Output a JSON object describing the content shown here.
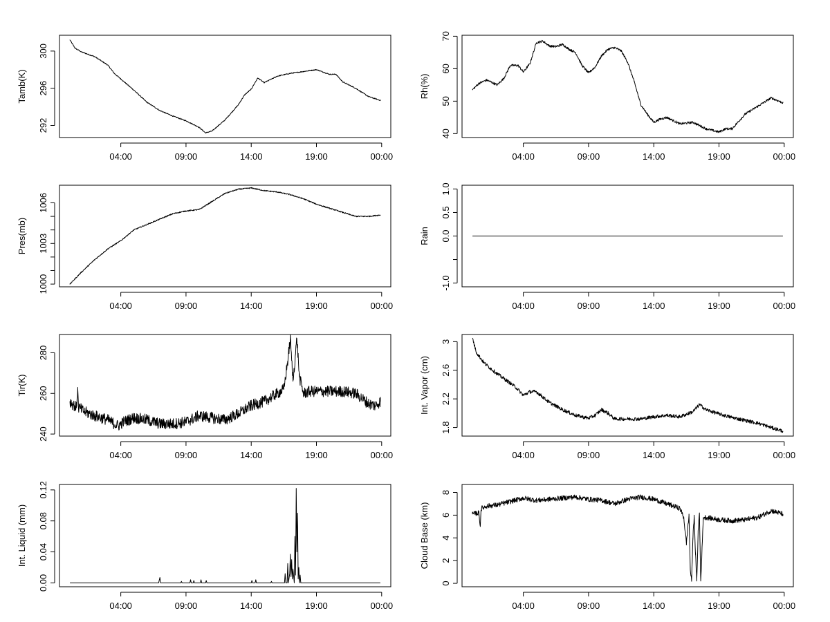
{
  "chart_data": [
    {
      "type": "line",
      "ylabel": "Tamb(K)",
      "xlabel": "",
      "x_ticks": [
        "04:00",
        "09:00",
        "14:00",
        "19:00",
        "00:00"
      ],
      "y_ticks": [
        292,
        296,
        300
      ],
      "ylim": [
        290.7,
        301.7
      ],
      "xlim_hours": [
        -0.7,
        24.7
      ],
      "noise": 0.05,
      "series": [
        {
          "x": [
            0.1,
            0.5,
            1,
            2,
            3,
            3.5,
            4,
            5,
            6,
            7,
            8,
            9,
            10,
            10.5,
            11,
            12,
            13,
            13.5,
            14,
            14.5,
            15,
            16,
            17,
            18,
            19,
            20,
            20.5,
            21,
            22,
            23,
            23.9
          ],
          "y": [
            301.2,
            300.3,
            299.9,
            299.4,
            298.5,
            297.6,
            297.0,
            295.8,
            294.5,
            293.6,
            293.0,
            292.5,
            291.8,
            291.2,
            291.4,
            292.6,
            294.2,
            295.3,
            295.9,
            297.1,
            296.6,
            297.3,
            297.6,
            297.8,
            298.0,
            297.5,
            297.5,
            296.7,
            296.0,
            295.1,
            294.7
          ]
        }
      ]
    },
    {
      "type": "line",
      "ylabel": "Rh(%)",
      "xlabel": "",
      "x_ticks": [
        "04:00",
        "09:00",
        "14:00",
        "19:00",
        "00:00"
      ],
      "y_ticks": [
        40,
        50,
        60,
        70
      ],
      "ylim": [
        38.8,
        70.3
      ],
      "xlim_hours": [
        -0.7,
        24.7
      ],
      "noise": 0.35,
      "series": [
        {
          "x": [
            0.1,
            0.6,
            1.2,
            2,
            2.5,
            3,
            3.6,
            4,
            4.5,
            5,
            5.5,
            6,
            6.5,
            7,
            7.5,
            8,
            8.5,
            9,
            9.5,
            10,
            10.5,
            11,
            11.5,
            12,
            12.5,
            13,
            13.5,
            14,
            14.5,
            15,
            16,
            17,
            18,
            19,
            19.5,
            20,
            21,
            22,
            23,
            23.9
          ],
          "y": [
            53.5,
            55.5,
            56.5,
            55.0,
            57.0,
            61.0,
            61.0,
            59.0,
            61.5,
            68.0,
            68.5,
            67.0,
            66.8,
            67.5,
            66.0,
            65.0,
            61.0,
            58.7,
            60.5,
            64.0,
            66.0,
            66.5,
            65.5,
            62.0,
            56.0,
            49.0,
            46.0,
            43.5,
            44.5,
            45.0,
            43.0,
            43.5,
            41.5,
            40.5,
            41.5,
            41.5,
            46.0,
            48.5,
            51.0,
            49.5
          ]
        }
      ]
    },
    {
      "type": "line",
      "ylabel": "Pres(mb)",
      "xlabel": "",
      "x_ticks": [
        "04:00",
        "09:00",
        "14:00",
        "19:00",
        "00:00"
      ],
      "y_ticks": [
        1000,
        1003,
        1006
      ],
      "y_minor_ticks": [
        1001,
        1002,
        1004,
        1005
      ],
      "ylim": [
        999.8,
        1007.3
      ],
      "xlim_hours": [
        -0.7,
        24.7
      ],
      "noise": 0.04,
      "series": [
        {
          "x": [
            0.1,
            1,
            2,
            3,
            4,
            5,
            6,
            7,
            8,
            9,
            10,
            11,
            12,
            13,
            14,
            15,
            16,
            17,
            18,
            19,
            20,
            21,
            22,
            23,
            23.9
          ],
          "y": [
            1000.0,
            1000.9,
            1001.8,
            1002.6,
            1003.2,
            1004.0,
            1004.4,
            1004.8,
            1005.2,
            1005.4,
            1005.5,
            1006.1,
            1006.7,
            1007.0,
            1007.1,
            1006.9,
            1006.8,
            1006.6,
            1006.3,
            1005.9,
            1005.6,
            1005.3,
            1005.0,
            1005.0,
            1005.1
          ]
        }
      ]
    },
    {
      "type": "line",
      "ylabel": "Rain",
      "xlabel": "",
      "x_ticks": [
        "04:00",
        "09:00",
        "14:00",
        "19:00",
        "00:00"
      ],
      "y_ticks": [
        -1.0,
        -0.5,
        0.0,
        0.5,
        1.0
      ],
      "y_tick_labels": [
        "-1.0",
        "",
        "0.0",
        "0.5",
        "1.0"
      ],
      "ylim": [
        -1.08,
        1.08
      ],
      "xlim_hours": [
        -0.7,
        24.7
      ],
      "noise": 0,
      "series": [
        {
          "x": [
            0.1,
            23.9
          ],
          "y": [
            0,
            0
          ]
        }
      ]
    },
    {
      "type": "line",
      "ylabel": "Tir(K)",
      "xlabel": "",
      "x_ticks": [
        "04:00",
        "09:00",
        "14:00",
        "19:00",
        "00:00"
      ],
      "y_ticks": [
        240,
        260,
        280
      ],
      "ylim": [
        239,
        289
      ],
      "xlim_hours": [
        -0.7,
        24.7
      ],
      "noise": 2.8,
      "series": [
        {
          "x": [
            0.1,
            0.6,
            0.7,
            0.75,
            0.8,
            1.2,
            2,
            3,
            3.8,
            4.2,
            5,
            6,
            7,
            8,
            9,
            10,
            11,
            12,
            13,
            14,
            15,
            16,
            16.5,
            16.8,
            17.0,
            17.2,
            17.5,
            17.7,
            18,
            18.5,
            19,
            20,
            21,
            22,
            23,
            23.5,
            23.9
          ],
          "y": [
            256,
            253,
            263,
            253,
            253,
            251,
            249,
            247,
            244,
            246,
            248,
            247,
            245,
            245,
            246,
            249,
            248,
            247,
            250,
            254,
            256,
            260,
            262,
            276,
            287,
            266,
            287,
            268,
            260,
            261,
            261,
            261,
            261,
            260,
            255,
            254,
            256
          ]
        }
      ]
    },
    {
      "type": "line",
      "ylabel": "Int. Vapor (cm)",
      "xlabel": "",
      "x_ticks": [
        "04:00",
        "09:00",
        "14:00",
        "19:00",
        "00:00"
      ],
      "y_ticks": [
        1.8,
        2.2,
        2.6,
        3.0
      ],
      "ylim": [
        1.68,
        3.1
      ],
      "xlim_hours": [
        -0.7,
        24.7
      ],
      "noise": 0.025,
      "series": [
        {
          "x": [
            0.1,
            0.4,
            1,
            2,
            3,
            3.5,
            4,
            4.5,
            5,
            6,
            7,
            8,
            9,
            9.5,
            10,
            10.5,
            11,
            12,
            13,
            14,
            15,
            16,
            17,
            17.5,
            18,
            19,
            20,
            21,
            22,
            23,
            23.9
          ],
          "y": [
            3.05,
            2.85,
            2.7,
            2.55,
            2.42,
            2.35,
            2.25,
            2.3,
            2.3,
            2.15,
            2.05,
            1.97,
            1.93,
            1.97,
            2.05,
            2.0,
            1.92,
            1.92,
            1.92,
            1.95,
            1.97,
            1.95,
            2.02,
            2.12,
            2.05,
            1.99,
            1.94,
            1.9,
            1.86,
            1.8,
            1.75
          ]
        }
      ]
    },
    {
      "type": "line",
      "ylabel": "Int. Liquid (mm)",
      "xlabel": "",
      "x_ticks": [
        "04:00",
        "09:00",
        "14:00",
        "19:00",
        "00:00"
      ],
      "y_ticks": [
        0.0,
        0.04,
        0.08,
        0.12
      ],
      "y_tick_labels": [
        "0.00",
        "0.04",
        "0.08",
        "0.12"
      ],
      "ylim": [
        -0.005,
        0.127
      ],
      "xlim_hours": [
        -0.7,
        24.7
      ],
      "noise": 0,
      "series": [
        {
          "x": [
            0.1,
            6.9,
            7.0,
            7.05,
            8.6,
            8.65,
            8.7,
            9.3,
            9.35,
            9.4,
            9.55,
            9.6,
            9.65,
            10.1,
            10.15,
            10.2,
            10.5,
            10.55,
            10.6,
            14.0,
            14.05,
            14.1,
            14.3,
            14.35,
            14.4,
            15.5,
            15.55,
            15.6,
            16.55,
            16.6,
            16.65,
            16.75,
            16.8,
            16.85,
            16.95,
            17.0,
            17.05,
            17.1,
            17.15,
            17.2,
            17.3,
            17.35,
            17.4,
            17.45,
            17.5,
            17.55,
            17.6,
            17.65,
            17.7,
            17.75,
            17.8,
            23.9
          ],
          "y": [
            0,
            0,
            0.007,
            0,
            0,
            0.002,
            0,
            0,
            0.004,
            0,
            0,
            0.003,
            0,
            0,
            0.004,
            0,
            0,
            0.003,
            0,
            0,
            0.003,
            0,
            0,
            0.004,
            0,
            0,
            0.002,
            0,
            0,
            0.012,
            0,
            0,
            0.025,
            0,
            0.012,
            0.037,
            0.008,
            0.03,
            0.005,
            0.018,
            0,
            0.06,
            0.01,
            0.122,
            0.04,
            0.09,
            0.005,
            0.02,
            0,
            0.01,
            0,
            0
          ]
        }
      ]
    },
    {
      "type": "line",
      "ylabel": "Cloud Base (km)",
      "xlabel": "",
      "x_ticks": [
        "04:00",
        "09:00",
        "14:00",
        "19:00",
        "00:00"
      ],
      "y_ticks": [
        0,
        2,
        4,
        6,
        8
      ],
      "ylim": [
        -0.3,
        8.7
      ],
      "xlim_hours": [
        -0.7,
        24.7
      ],
      "noise": 0.22,
      "series": [
        {
          "x": [
            0.1,
            0.6,
            0.7,
            0.75,
            0.8,
            1.2,
            2,
            3,
            4,
            5,
            6,
            7,
            8,
            9,
            10,
            11,
            12,
            13,
            14,
            15,
            16,
            16.3,
            16.5,
            16.7,
            16.8,
            16.9,
            17.0,
            17.1,
            17.2,
            17.3,
            17.4,
            17.5,
            17.6,
            17.8,
            18,
            19,
            20,
            21,
            22,
            23,
            23.9
          ],
          "y": [
            6.1,
            6.2,
            5.0,
            6.4,
            6.6,
            6.8,
            6.9,
            7.2,
            7.5,
            7.3,
            7.4,
            7.5,
            7.6,
            7.4,
            7.3,
            7.0,
            7.4,
            7.6,
            7.4,
            7.0,
            6.6,
            5.8,
            3.5,
            6.0,
            1.2,
            0.2,
            4.0,
            6.0,
            2.5,
            0.2,
            4.5,
            6.2,
            0.2,
            5.8,
            5.8,
            5.6,
            5.5,
            5.6,
            5.8,
            6.4,
            6.1
          ]
        }
      ]
    }
  ]
}
